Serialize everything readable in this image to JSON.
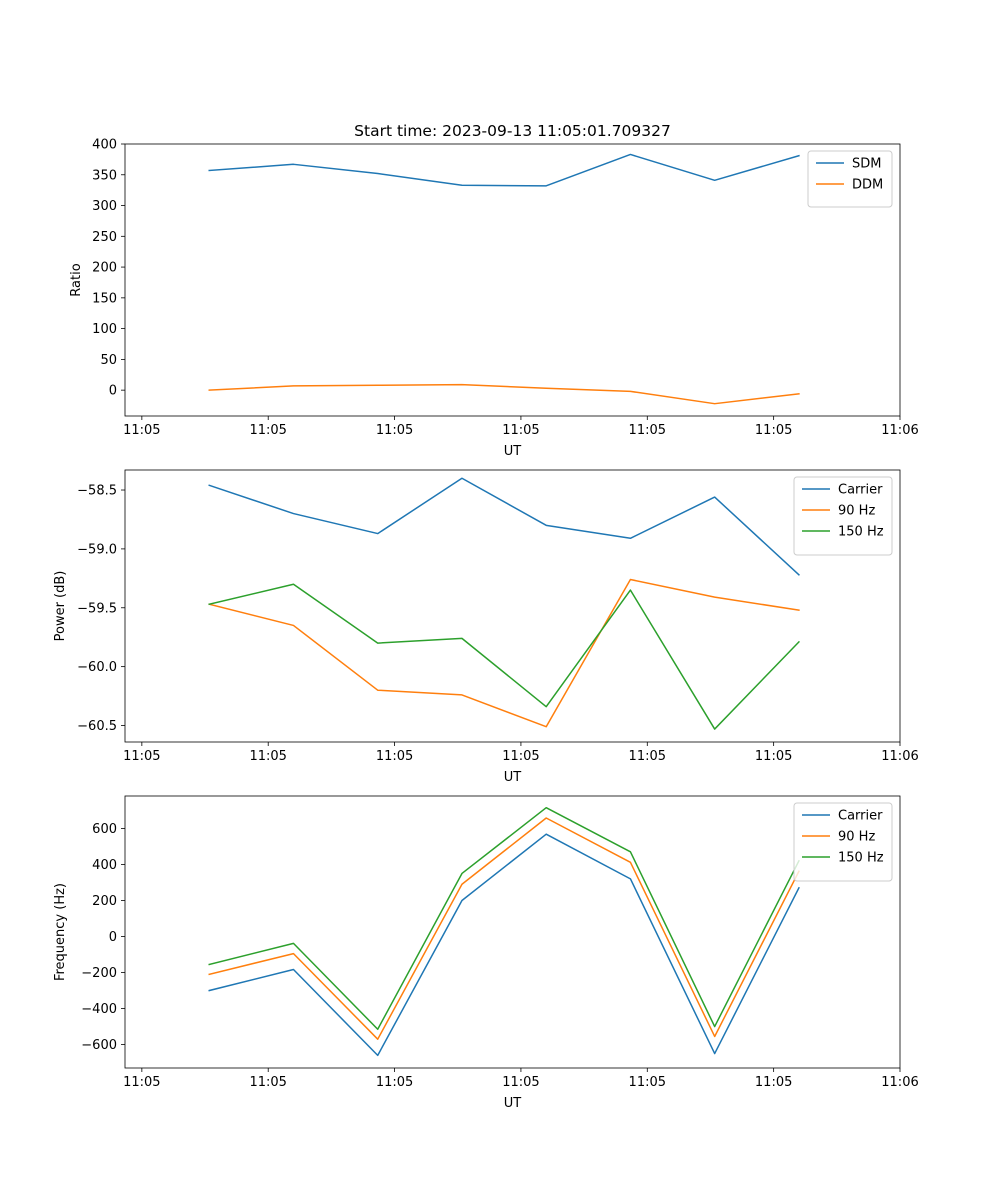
{
  "chart_data": [
    {
      "type": "line",
      "title": "Start time: 2023-09-13 11:05:01.709327",
      "xlabel": "UT",
      "ylabel": "Ratio",
      "legend_position": "top-right",
      "grid": false,
      "xlim": [
        0,
        9.2
      ],
      "x": [
        1,
        2,
        3,
        4,
        5,
        6,
        7,
        8
      ],
      "xtick_positions": [
        0.2,
        1.7,
        3.2,
        4.7,
        6.2,
        7.7,
        9.2
      ],
      "xtick_labels": [
        "11:05",
        "11:05",
        "11:05",
        "11:05",
        "11:05",
        "11:05",
        "11:06"
      ],
      "ylim": [
        -42,
        400
      ],
      "yticks": [
        0,
        50,
        100,
        150,
        200,
        250,
        300,
        350,
        400
      ],
      "series": [
        {
          "name": "SDM",
          "color": "#1f77b4",
          "values": [
            357,
            367,
            352,
            333,
            332,
            383,
            341,
            381
          ]
        },
        {
          "name": "DDM",
          "color": "#ff7f0e",
          "values": [
            0,
            7,
            8,
            9,
            3,
            -2,
            -22,
            -6
          ]
        }
      ]
    },
    {
      "type": "line",
      "xlabel": "UT",
      "ylabel": "Power (dB)",
      "legend_position": "top-right",
      "grid": false,
      "xlim": [
        0,
        9.2
      ],
      "x": [
        1,
        2,
        3,
        4,
        5,
        6,
        7,
        8
      ],
      "xtick_positions": [
        0.2,
        1.7,
        3.2,
        4.7,
        6.2,
        7.7,
        9.2
      ],
      "xtick_labels": [
        "11:05",
        "11:05",
        "11:05",
        "11:05",
        "11:05",
        "11:05",
        "11:06"
      ],
      "ylim": [
        -60.64,
        -58.33
      ],
      "yticks": [
        -60.5,
        -60.0,
        -59.5,
        -59.0,
        -58.5
      ],
      "ytick_labels": [
        "−60.5",
        "−60.0",
        "−59.5",
        "−59.0",
        "−58.5"
      ],
      "series": [
        {
          "name": "Carrier",
          "color": "#1f77b4",
          "values": [
            -58.46,
            -58.7,
            -58.87,
            -58.4,
            -58.8,
            -58.91,
            -58.56,
            -59.22
          ]
        },
        {
          "name": "90 Hz",
          "color": "#ff7f0e",
          "values": [
            -59.47,
            -59.65,
            -60.2,
            -60.24,
            -60.51,
            -59.26,
            -59.41,
            -59.52
          ]
        },
        {
          "name": "150 Hz",
          "color": "#2ca02c",
          "values": [
            -59.47,
            -59.3,
            -59.8,
            -59.76,
            -60.34,
            -59.35,
            -60.53,
            -59.79
          ]
        }
      ]
    },
    {
      "type": "line",
      "xlabel": "UT",
      "ylabel": "Frequency (Hz)",
      "legend_position": "top-right",
      "grid": false,
      "xlim": [
        0,
        9.2
      ],
      "x": [
        1,
        2,
        3,
        4,
        5,
        6,
        7,
        8
      ],
      "xtick_positions": [
        0.2,
        1.7,
        3.2,
        4.7,
        6.2,
        7.7,
        9.2
      ],
      "xtick_labels": [
        "11:05",
        "11:05",
        "11:05",
        "11:05",
        "11:05",
        "11:05",
        "11:06"
      ],
      "ylim": [
        -730,
        780
      ],
      "yticks": [
        -600,
        -400,
        -200,
        0,
        200,
        400,
        600
      ],
      "ytick_labels": [
        "−600",
        "−400",
        "−200",
        "0",
        "200",
        "400",
        "600"
      ],
      "series": [
        {
          "name": "Carrier",
          "color": "#1f77b4",
          "values": [
            -300,
            -183,
            -660,
            200,
            568,
            320,
            -650,
            270
          ]
        },
        {
          "name": "90 Hz",
          "color": "#ff7f0e",
          "values": [
            -210,
            -95,
            -570,
            290,
            658,
            412,
            -555,
            362
          ]
        },
        {
          "name": "150 Hz",
          "color": "#2ca02c",
          "values": [
            -155,
            -38,
            -515,
            350,
            715,
            470,
            -500,
            420
          ]
        }
      ]
    }
  ]
}
